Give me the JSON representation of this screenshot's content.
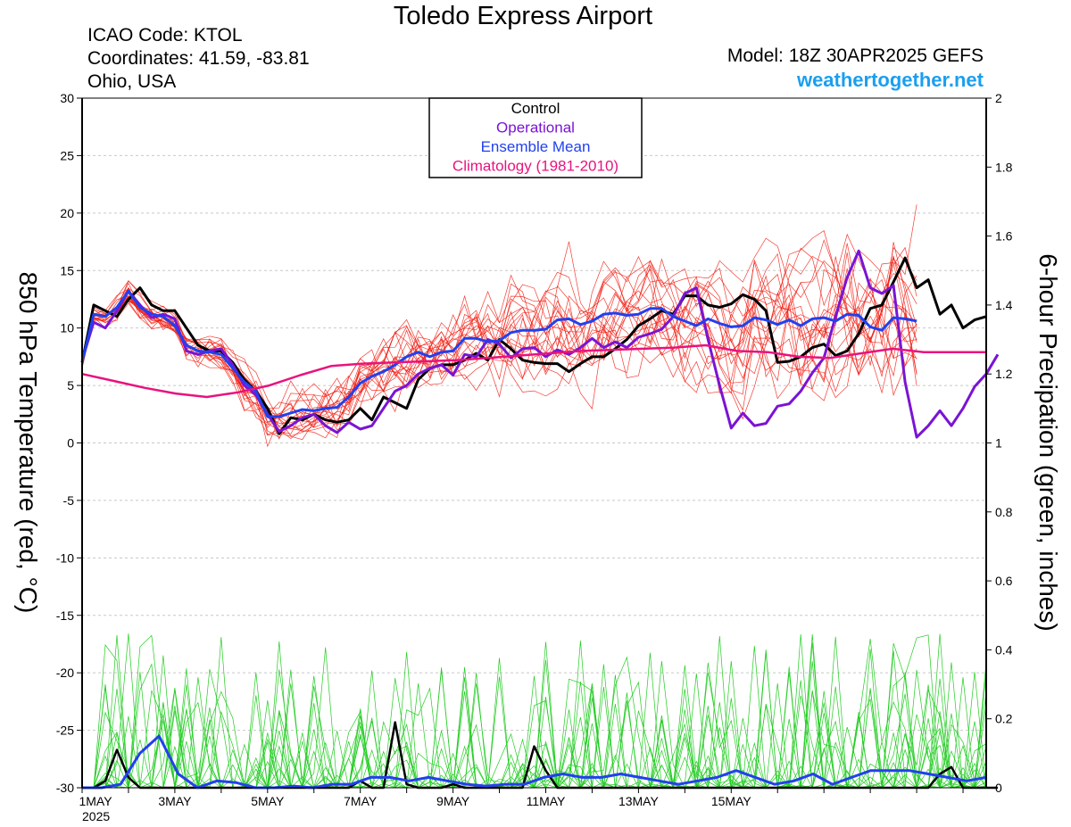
{
  "header": {
    "title": "Toledo Express Airport",
    "icao": "ICAO Code: KTOL",
    "coordinates": "Coordinates: 41.59, -83.81",
    "location": "Ohio, USA",
    "model": "Model: 18Z 30APR2025 GEFS",
    "website": "weathertogether.net"
  },
  "colors": {
    "control": "#000000",
    "operational": "#7a14d4",
    "ensemble_mean": "#2240ee",
    "climatology": "#e8137e",
    "members_temp": "#f21a0f",
    "members_precip": "#22cc22",
    "website": "#1a9ff0"
  },
  "chart_data": {
    "type": "line",
    "title": "Toledo Express Airport",
    "xlabel": "",
    "ylabel_left": "850 hPa Temperature (red, °C)",
    "ylabel_right": "6-hour Precipation (green, inches)",
    "x_start": "1MAY 2025 00Z",
    "x_step_hours": 6,
    "x_ticks": [
      "1MAY",
      "3MAY",
      "5MAY",
      "7MAY",
      "9MAY",
      "11MAY",
      "13MAY",
      "15MAY"
    ],
    "x_year_label": "2025",
    "ylim_left": [
      -30,
      30
    ],
    "yticks_left": [
      30,
      25,
      20,
      15,
      10,
      5,
      0,
      -5,
      -10,
      -15,
      -20,
      -25,
      -30
    ],
    "ylim_right": [
      0,
      2
    ],
    "yticks_right": [
      "2",
      "1.8",
      "1.6",
      "1.4",
      "1.2",
      "1",
      "0.8",
      "0.6",
      "0.4",
      "0.2",
      "0"
    ],
    "grid": true,
    "legend": {
      "placement": "top-center",
      "entries": [
        "Control",
        "Operational",
        "Ensemble Mean",
        "Climatology (1981-2010)"
      ]
    },
    "series": [
      {
        "name": "Control",
        "axis": "left",
        "values": [
          7,
          12,
          11.5,
          11,
          12.5,
          13.5,
          12,
          11.5,
          11.5,
          10,
          8.5,
          8,
          8,
          7,
          5.5,
          4.5,
          3,
          0.8,
          2.2,
          2,
          2.5,
          2,
          1.8,
          2,
          3,
          2,
          4,
          3.5,
          3,
          5.5,
          6.5,
          6.8,
          6.8,
          7.2,
          7.8,
          7.2,
          9,
          8.2,
          7.2,
          7,
          6.9,
          6.9,
          6.2,
          6.9,
          7.5,
          7.5,
          8.2,
          9,
          10.2,
          10.8,
          11.5,
          11.2,
          12.8,
          12.8,
          12,
          11.8,
          12.1,
          12.9,
          12.5,
          11.5,
          7,
          7.1,
          7.5,
          8.3,
          8.6,
          7.6,
          8,
          9.5,
          11.7,
          12,
          14,
          16.1,
          13.5,
          14.2,
          11.2,
          12,
          10,
          10.7,
          11
        ]
      },
      {
        "name": "Operational",
        "axis": "left",
        "values": [
          7.2,
          10.5,
          10,
          11.5,
          13.2,
          12,
          10.9,
          11.2,
          10.8,
          8,
          7.7,
          8,
          8.2,
          6.8,
          5,
          4.2,
          2.5,
          1,
          1.5,
          2.2,
          2.5,
          1.5,
          0.9,
          1.8,
          1.2,
          1.5,
          3,
          4.5,
          5,
          6,
          6.5,
          6.8,
          5.9,
          7.7,
          7.5,
          9,
          8.6,
          7.4,
          8.2,
          8.3,
          7.5,
          8.1,
          7.7,
          8.3,
          9.1,
          8.3,
          8.8,
          8.3,
          9.2,
          9.5,
          9.9,
          11,
          13,
          13.5,
          9,
          5,
          1.3,
          2.6,
          1.5,
          1.7,
          3.2,
          3.4,
          4.5,
          6.1,
          7.4,
          11,
          14.4,
          16.7,
          13.5,
          13,
          13.7,
          5.3,
          0.5,
          1.5,
          2.8,
          1.5,
          3,
          4.9,
          6,
          7.7
        ]
      },
      {
        "name": "Ensemble Mean",
        "axis": "left",
        "values": [
          7,
          11.2,
          11,
          11.8,
          13.2,
          11.8,
          11.2,
          11,
          10.2,
          8.5,
          8,
          7.9,
          7.7,
          6.5,
          5.3,
          4.5,
          2.3,
          2.3,
          2.6,
          2.9,
          2.8,
          3,
          3.1,
          4,
          5.2,
          5.8,
          6.2,
          6.8,
          7.5,
          7.9,
          7.5,
          7.9,
          8,
          9.1,
          9.1,
          8.8,
          8.9,
          9.6,
          9.8,
          9.8,
          9.9,
          10.7,
          10.8,
          10.3,
          10.6,
          11.2,
          11.3,
          11.1,
          11.2,
          11.7,
          11.7,
          11,
          10.6,
          10.2,
          10.8,
          10.4,
          10.1,
          10.2,
          10.9,
          10.7,
          10.3,
          10.7,
          10.2,
          10.8,
          10.9,
          10.6,
          11.2,
          11.1,
          10.1,
          9.8,
          10.9,
          10.8,
          10.6
        ]
      },
      {
        "name": "Climatology (1981-2010)",
        "axis": "left",
        "values": [
          6,
          5.4,
          4.8,
          4.3,
          4,
          4.4,
          5,
          5.9,
          6.7,
          6.9,
          7,
          7.1,
          7.2,
          7.4,
          7.6,
          7.8,
          8,
          8.1,
          8.2,
          8.3,
          8.5,
          8,
          7.9,
          7.5,
          7.4,
          7.8,
          8.2,
          7.9,
          7.9,
          7.9
        ]
      },
      {
        "name": "Control Precip",
        "axis": "right",
        "values": [
          0,
          0,
          0.02,
          0.11,
          0.03,
          0,
          0,
          0,
          0,
          0,
          0,
          0,
          0,
          0,
          0,
          0,
          0,
          0,
          0,
          0,
          0,
          0,
          0,
          0,
          0.02,
          0,
          0,
          0.19,
          0.01,
          0,
          0,
          0,
          0.01,
          0,
          0,
          0,
          0,
          0,
          0,
          0.12,
          0.05,
          0,
          0,
          0,
          0,
          0,
          0,
          0,
          0,
          0,
          0,
          0,
          0,
          0,
          0,
          0,
          0,
          0,
          0,
          0,
          0,
          0,
          0,
          0,
          0,
          0,
          0,
          0,
          0,
          0,
          0,
          0,
          0,
          0,
          0.04,
          0.06,
          0,
          0,
          0,
          0
        ]
      },
      {
        "name": "Ensemble Mean Precip",
        "axis": "right",
        "values": [
          0,
          0,
          0.01,
          0.1,
          0.15,
          0.04,
          0,
          0.02,
          0.015,
          0,
          0,
          0.005,
          0,
          0.01,
          0.01,
          0.03,
          0.03,
          0.02,
          0.03,
          0.02,
          0.01,
          0.005,
          0.01,
          0.01,
          0.03,
          0.04,
          0.03,
          0.03,
          0.04,
          0.03,
          0.02,
          0.01,
          0.02,
          0.03,
          0.05,
          0.03,
          0.01,
          0.02,
          0.04,
          0.01,
          0.03,
          0.05,
          0.05,
          0.05,
          0.04,
          0.03,
          0.02,
          0.03
        ]
      }
    ]
  }
}
